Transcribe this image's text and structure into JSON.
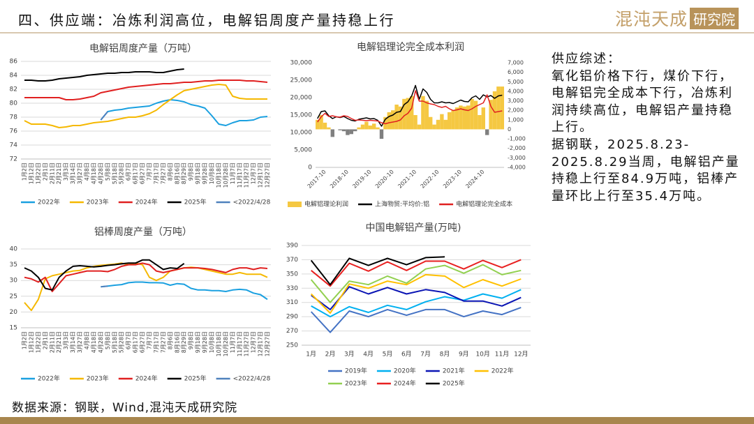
{
  "header": {
    "title": "四、供应端：冶炼利润高位，电解铝周度产量持稳上行",
    "logo": {
      "name": "混沌天成",
      "box": "研究院"
    }
  },
  "summary": {
    "heading": "供应综述：",
    "lines": [
      "氧化铝价格下行，煤价下行，",
      "电解铝完全成本下行，冶炼利",
      "润持续高位，电解铝产量持稳",
      "上行。",
      "据钢联，2025.8.23-",
      "2025.8.29当周，电解铝产量",
      "持稳上行至84.9万吨，铝棒产",
      "量环比上行至35.4万吨。"
    ]
  },
  "footer": {
    "source": "数据来源：钢联，Wind,混沌天成研究院"
  },
  "chart_data": [
    {
      "type": "line",
      "title": "电解铝周度产量（万吨）",
      "grid": true,
      "categories": [
        "1月2日",
        "1月12日",
        "1月22日",
        "2月1日",
        "2月11日",
        "2月21日",
        "3月3日",
        "3月14日",
        "3月27日",
        "4月8日",
        "4月18日",
        "4月28日",
        "5月8日",
        "5月18日",
        "5月28日",
        "6月7日",
        "6月17日",
        "6月27日",
        "7月7日",
        "7月17日",
        "7月27日",
        "8月6日",
        "8月16日",
        "8月29日",
        "9月8日",
        "9月18日",
        "9月28日",
        "10月8日",
        "10月18日",
        "10月28日",
        "11月7日",
        "11月17日",
        "11月27日",
        "12月7日",
        "12月17日",
        "12月27日"
      ],
      "ylim": [
        72,
        86
      ],
      "yticks": [
        72,
        74,
        76,
        78,
        80,
        82,
        84,
        86
      ],
      "series": [
        {
          "name": "2022年",
          "color": "#1aa0e0",
          "values": [
            null,
            null,
            null,
            null,
            null,
            null,
            null,
            null,
            null,
            null,
            null,
            77.6,
            78.8,
            79.0,
            79.1,
            79.3,
            79.4,
            79.5,
            79.6,
            80.0,
            80.3,
            80.5,
            80.4,
            80.2,
            79.8,
            79.6,
            79.3,
            78.2,
            77.0,
            76.8,
            77.2,
            77.5,
            77.5,
            77.6,
            78.0,
            78.1
          ]
        },
        {
          "name": "2023年",
          "color": "#f5b800",
          "values": [
            77.5,
            77.0,
            77.0,
            77.0,
            76.8,
            76.5,
            76.6,
            76.8,
            76.8,
            77.0,
            77.2,
            77.3,
            77.4,
            77.6,
            77.8,
            78.0,
            78.0,
            78.2,
            78.5,
            79.0,
            79.8,
            80.5,
            81.2,
            81.8,
            82.0,
            82.2,
            82.4,
            82.6,
            82.7,
            82.6,
            81.0,
            80.7,
            80.6,
            80.6,
            80.6,
            80.6
          ]
        },
        {
          "name": "2024年",
          "color": "#e02020",
          "values": [
            80.8,
            80.8,
            80.8,
            80.8,
            80.8,
            80.8,
            80.5,
            80.5,
            80.6,
            80.8,
            81.0,
            81.5,
            81.7,
            81.9,
            82.1,
            82.3,
            82.4,
            82.5,
            82.6,
            82.7,
            82.8,
            82.8,
            82.9,
            83.0,
            83.0,
            83.1,
            83.2,
            83.2,
            83.3,
            83.3,
            83.3,
            83.3,
            83.2,
            83.2,
            83.1,
            83.0
          ]
        },
        {
          "name": "2025年",
          "color": "#000000",
          "values": [
            83.3,
            83.3,
            83.2,
            83.2,
            83.3,
            83.5,
            83.6,
            83.7,
            83.8,
            84.0,
            84.1,
            84.2,
            84.3,
            84.3,
            84.4,
            84.4,
            84.5,
            84.5,
            84.5,
            84.4,
            84.4,
            84.6,
            84.8,
            84.9,
            null,
            null,
            null,
            null,
            null,
            null,
            null,
            null,
            null,
            null,
            null,
            null
          ]
        },
        {
          "name": "<2022/4/28",
          "color": "#4f81bd",
          "values": [
            null,
            null,
            null,
            null,
            null,
            null,
            null,
            null,
            null,
            null,
            null,
            77.6,
            78.8,
            null,
            null,
            null,
            null,
            null,
            null,
            null,
            null,
            null,
            null,
            null,
            null,
            null,
            null,
            null,
            null,
            null,
            null,
            null,
            null,
            null,
            null,
            null
          ]
        }
      ]
    },
    {
      "type": "combo",
      "title": "电解铝理论完全成本利润",
      "x": [
        "2017-06",
        "2017-08",
        "2017-10",
        "2017-12",
        "2018-02",
        "2018-04",
        "2018-06",
        "2018-08",
        "2018-10",
        "2018-12",
        "2019-02",
        "2019-04",
        "2019-06",
        "2019-08",
        "2019-10",
        "2019-12",
        "2020-02",
        "2020-04",
        "2020-06",
        "2020-08",
        "2020-10",
        "2020-12",
        "2021-02",
        "2021-04",
        "2021-06",
        "2021-08",
        "2021-10",
        "2021-12",
        "2022-02",
        "2022-04",
        "2022-06",
        "2022-08",
        "2022-10",
        "2022-12",
        "2023-02",
        "2023-04",
        "2023-06",
        "2023-08",
        "2023-10",
        "2023-12",
        "2024-02",
        "2024-04",
        "2024-06",
        "2024-08",
        "2024-10",
        "2024-12",
        "2025-02",
        "2025-04",
        "2025-06",
        "2025-08"
      ],
      "xticks": [
        "2017-10",
        "2018-10",
        "2019-10",
        "2020-10",
        "2021-10",
        "2022-10",
        "2023-10",
        "2024-10"
      ],
      "ylim": [
        0,
        30000
      ],
      "yticks": [
        0,
        {
          "value": 5000,
          "label": "5,000"
        },
        {
          "value": 10000,
          "label": "10,000"
        },
        {
          "value": 15000,
          "label": "15,000"
        },
        {
          "value": 20000,
          "label": "20,000"
        },
        {
          "value": 25000,
          "label": "25,000"
        },
        {
          "value": 30000,
          "label": "30,000"
        }
      ],
      "y2lim": [
        -4000,
        7000
      ],
      "y2ticks": [
        {
          "value": -4000,
          "label": "-4,000"
        },
        {
          "value": -3000,
          "label": "-3,000"
        },
        {
          "value": -2000,
          "label": "-2,000"
        },
        {
          "value": -1000,
          "label": "-1,000"
        },
        0,
        {
          "value": 1000,
          "label": "1,000"
        },
        {
          "value": 2000,
          "label": "2,000"
        },
        {
          "value": 3000,
          "label": "3,000"
        },
        {
          "value": 4000,
          "label": "4,000"
        },
        {
          "value": 5000,
          "label": "5,000"
        },
        {
          "value": 6000,
          "label": "6,000"
        },
        {
          "value": 7000,
          "label": "7,000"
        }
      ],
      "series": [
        {
          "name": "电解铝理论利润",
          "type": "bar",
          "axis": "y2",
          "color": "#f5c842",
          "negative_color": "#808080",
          "values": [
            1000,
            1500,
            700,
            200,
            -800,
            0,
            -100,
            -200,
            -600,
            -500,
            -200,
            200,
            500,
            800,
            400,
            600,
            200,
            -1000,
            1300,
            1800,
            2000,
            2600,
            2400,
            3200,
            3300,
            3500,
            1500,
            500,
            3500,
            3000,
            1300,
            500,
            1000,
            1600,
            1000,
            1800,
            2000,
            2300,
            2500,
            2400,
            2500,
            3200,
            3000,
            1500,
            2300,
            -600,
            3100,
            4000,
            4500,
            4500
          ]
        },
        {
          "name": "上海物贸:平均价:铝",
          "type": "line",
          "color": "#000000",
          "values": [
            14000,
            16000,
            16200,
            14800,
            14000,
            14500,
            14300,
            14600,
            14000,
            13500,
            13300,
            13800,
            14000,
            14200,
            13900,
            14000,
            13500,
            11800,
            13800,
            14600,
            15000,
            15800,
            16000,
            18000,
            18800,
            20500,
            23500,
            19500,
            22500,
            21500,
            19500,
            18500,
            18500,
            18800,
            18500,
            18600,
            18300,
            18800,
            19300,
            18900,
            18800,
            20000,
            20500,
            19500,
            20800,
            20200,
            20600,
            19800,
            20500,
            20700
          ]
        },
        {
          "name": "电解铝理论完全成本",
          "type": "line",
          "color": "#e02020",
          "values": [
            13000,
            14500,
            15500,
            14600,
            14800,
            14500,
            14400,
            14800,
            14600,
            14000,
            13500,
            13600,
            13500,
            13400,
            13500,
            13400,
            13300,
            12800,
            12500,
            12800,
            13000,
            13200,
            13600,
            14800,
            15500,
            17000,
            22000,
            19000,
            19000,
            18500,
            18200,
            18000,
            17500,
            17200,
            17500,
            16800,
            16300,
            16500,
            16800,
            16500,
            16300,
            16800,
            17500,
            18000,
            18500,
            20800,
            17500,
            15800,
            16000,
            16200
          ]
        }
      ]
    },
    {
      "type": "line",
      "title": "铝棒周度产量（万吨）",
      "grid": true,
      "categories": [
        "1月2日",
        "1月12日",
        "1月22日",
        "2月1日",
        "2月11日",
        "2月21日",
        "3月3日",
        "3月14日",
        "3月27日",
        "4月8日",
        "4月18日",
        "4月28日",
        "5月8日",
        "5月18日",
        "5月28日",
        "6月7日",
        "6月17日",
        "6月27日",
        "7月7日",
        "7月17日",
        "7月27日",
        "8月6日",
        "8月16日",
        "8月29日",
        "9月8日",
        "9月18日",
        "9月28日",
        "10月8日",
        "10月18日",
        "10月28日",
        "11月7日",
        "11月17日",
        "11月27日",
        "12月7日",
        "12月17日",
        "12月27日"
      ],
      "ylim": [
        15,
        40
      ],
      "yticks": [
        15,
        20,
        25,
        30,
        35,
        40
      ],
      "series": [
        {
          "name": "2022年",
          "color": "#1aa0e0",
          "values": [
            null,
            null,
            null,
            null,
            null,
            null,
            null,
            null,
            null,
            null,
            null,
            28,
            28.2,
            28.5,
            28.7,
            29.3,
            29.5,
            29.5,
            29.3,
            29.3,
            29.2,
            28.5,
            29,
            28.8,
            27.5,
            27,
            27,
            26.8,
            26.8,
            26.5,
            27,
            27.2,
            27,
            26,
            25.5,
            24
          ]
        },
        {
          "name": "2023年",
          "color": "#f5b800",
          "values": [
            23,
            20.5,
            24,
            30.5,
            31.5,
            32,
            32.5,
            33,
            33.2,
            34,
            34.5,
            34.8,
            35,
            35.2,
            35.5,
            35,
            35.5,
            35,
            31,
            30,
            31,
            33,
            33.5,
            34,
            34.2,
            34,
            33.5,
            33,
            32.5,
            32,
            32,
            32.5,
            32,
            32,
            32,
            31
          ]
        },
        {
          "name": "2024年",
          "color": "#e02020",
          "values": [
            31,
            30.5,
            29.5,
            31,
            26.5,
            29,
            31.5,
            32,
            32.5,
            33,
            33,
            33,
            32.8,
            33.5,
            34.5,
            35,
            35,
            35.5,
            35,
            33,
            32.5,
            33,
            33.5,
            34,
            34,
            34,
            33.8,
            33.5,
            33,
            32.5,
            33.5,
            34,
            34,
            33.5,
            34,
            33.8
          ]
        },
        {
          "name": "2025年",
          "color": "#000000",
          "values": [
            34,
            33,
            31,
            27.5,
            27,
            31,
            33,
            34.5,
            34.7,
            34.5,
            34.3,
            34.5,
            34.8,
            35,
            35.3,
            35.5,
            35.5,
            36.5,
            36.5,
            35,
            33.5,
            34,
            33.8,
            35.4,
            null,
            null,
            null,
            null,
            null,
            null,
            null,
            null,
            null,
            null,
            null,
            null
          ]
        },
        {
          "name": "<2022/4/28",
          "color": "#4f81bd",
          "values": [
            null,
            null,
            null,
            null,
            null,
            null,
            null,
            null,
            null,
            null,
            null,
            28,
            28.2,
            null,
            null,
            null,
            null,
            null,
            null,
            null,
            null,
            null,
            null,
            null,
            null,
            null,
            null,
            null,
            null,
            null,
            null,
            null,
            null,
            null,
            null,
            null
          ]
        }
      ]
    },
    {
      "type": "line",
      "title": "中国电解铝产量(万吨)",
      "grid": true,
      "categories": [
        "1月",
        "2月",
        "3月",
        "4月",
        "5月",
        "6月",
        "7月",
        "8月",
        "9月",
        "10月",
        "11月",
        "12月"
      ],
      "ylim": [
        250,
        390
      ],
      "yticks": [
        250,
        270,
        290,
        310,
        330,
        350,
        370,
        390
      ],
      "series": [
        {
          "name": "2019年",
          "color": "#4472c4",
          "values": [
            297,
            268,
            298,
            290,
            300,
            292,
            300,
            300,
            290,
            298,
            293,
            303
          ]
        },
        {
          "name": "2020年",
          "color": "#00b0f0",
          "values": [
            305,
            290,
            304,
            296,
            306,
            300,
            311,
            318,
            313,
            322,
            316,
            328
          ]
        },
        {
          "name": "2021年",
          "color": "#0a14b4",
          "values": [
            320,
            300,
            332,
            322,
            331,
            322,
            328,
            324,
            312,
            312,
            305,
            317
          ]
        },
        {
          "name": "2022年",
          "color": "#ffc000",
          "values": [
            322,
            295,
            336,
            330,
            340,
            335,
            349,
            347,
            331,
            342,
            333,
            343
          ]
        },
        {
          "name": "2023年",
          "color": "#92d050",
          "values": [
            342,
            310,
            340,
            335,
            347,
            337,
            357,
            362,
            351,
            363,
            349,
            355
          ]
        },
        {
          "name": "2024年",
          "color": "#e82020",
          "values": [
            355,
            333,
            365,
            354,
            367,
            355,
            368,
            368,
            357,
            369,
            359,
            370
          ]
        },
        {
          "name": "2025年",
          "color": "#000000",
          "values": [
            369,
            335,
            372,
            362,
            372,
            363,
            373,
            374,
            null,
            null,
            null,
            null
          ]
        }
      ]
    }
  ]
}
